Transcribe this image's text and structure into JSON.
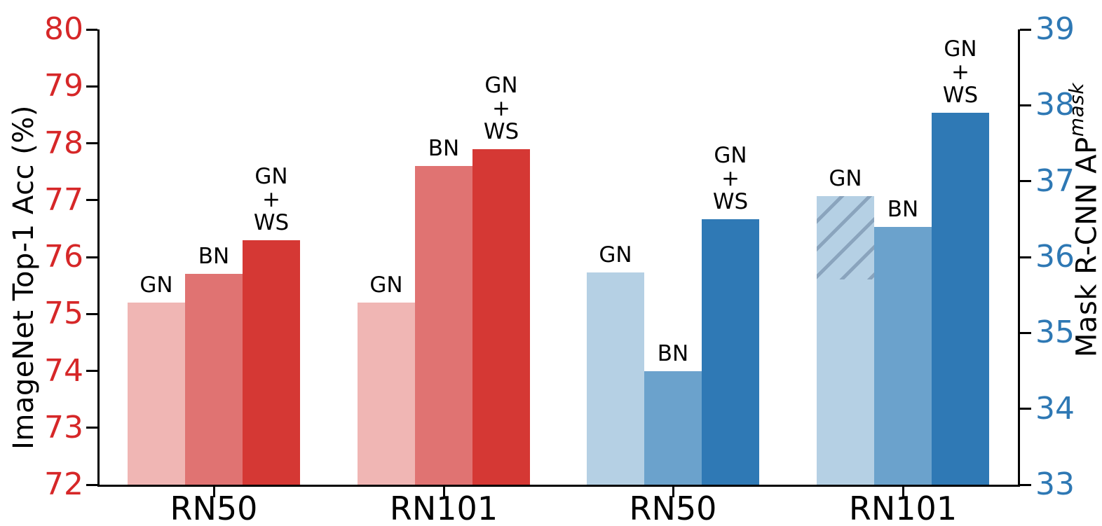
{
  "chart_data": {
    "type": "bar",
    "title": "",
    "grid": false,
    "legend": false,
    "left_axis": {
      "label": "ImageNet Top-1 Acc (%)",
      "color": "#d62728",
      "min": 72,
      "max": 80,
      "ticks": [
        72,
        73,
        74,
        75,
        76,
        77,
        78,
        79,
        80
      ]
    },
    "right_axis": {
      "label_prefix": "Mask R-CNN AP",
      "label_superscript": "mask",
      "color": "#2e78b4",
      "min": 33,
      "max": 39,
      "ticks": [
        33,
        34,
        35,
        36,
        37,
        38,
        39
      ]
    },
    "bar_colors": {
      "red_light": "#f0b6b4",
      "red_mid": "#e07372",
      "red_dark": "#d53834",
      "blue_light": "#b5d0e4",
      "blue_mid": "#6ba2cc",
      "blue_dark": "#2f79b5",
      "hatch_line": "#8aa4bd"
    },
    "groups": [
      {
        "category": "RN50",
        "axis": "left",
        "series": [
          {
            "label_lines": [
              "GN"
            ],
            "value": 75.2,
            "color": "#f0b6b4"
          },
          {
            "label_lines": [
              "BN"
            ],
            "value": 75.7,
            "color": "#e07372"
          },
          {
            "label_lines": [
              "GN",
              "+",
              "WS"
            ],
            "value": 76.3,
            "color": "#d53834"
          }
        ]
      },
      {
        "category": "RN101",
        "axis": "left",
        "series": [
          {
            "label_lines": [
              "GN"
            ],
            "value": 75.2,
            "color": "#f0b6b4"
          },
          {
            "label_lines": [
              "BN"
            ],
            "value": 77.6,
            "color": "#e07372"
          },
          {
            "label_lines": [
              "GN",
              "+",
              "WS"
            ],
            "value": 77.9,
            "color": "#d53834"
          }
        ]
      },
      {
        "category": "RN50",
        "axis": "right",
        "series": [
          {
            "label_lines": [
              "GN"
            ],
            "value": 35.8,
            "color": "#b5d0e4"
          },
          {
            "label_lines": [
              "BN"
            ],
            "value": 34.5,
            "color": "#6ba2cc"
          },
          {
            "label_lines": [
              "GN",
              "+",
              "WS"
            ],
            "value": 36.5,
            "color": "#2f79b5"
          }
        ]
      },
      {
        "category": "RN101",
        "axis": "right",
        "series": [
          {
            "label_lines": [
              "GN"
            ],
            "value": 36.8,
            "color": "#b5d0e4",
            "hatch_from": 35.7
          },
          {
            "label_lines": [
              "BN"
            ],
            "value": 36.4,
            "color": "#6ba2cc"
          },
          {
            "label_lines": [
              "GN",
              "+",
              "WS"
            ],
            "value": 37.9,
            "color": "#2f79b5"
          }
        ]
      }
    ]
  }
}
